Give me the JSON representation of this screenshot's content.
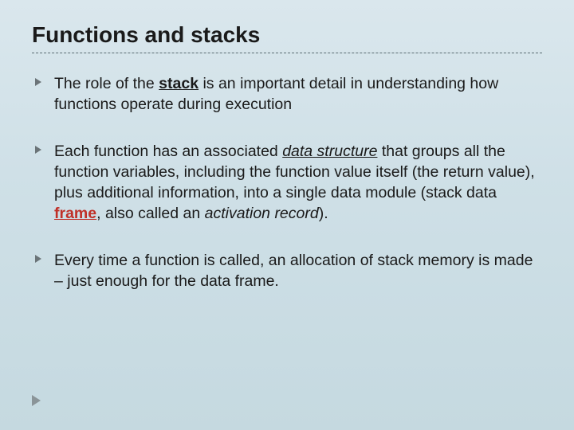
{
  "slide": {
    "title": "Functions and stacks",
    "background_gradient": [
      "#dae7ed",
      "#cfe0e7",
      "#c5d9e0"
    ],
    "divider_color": "#5a6b72",
    "title_fontsize": 28,
    "body_fontsize": 19.5,
    "bullet_color": "#6b7478",
    "corner_marker_color": "#8a9498",
    "accent_red": "#c03028",
    "text_color": "#1a1a1a",
    "bullets": [
      {
        "runs": [
          {
            "t": "The role of the "
          },
          {
            "t": "stack",
            "b": true,
            "u": true
          },
          {
            "t": " is an important detail in understanding how functions operate during execution"
          }
        ]
      },
      {
        "runs": [
          {
            "t": "Each function has an associated "
          },
          {
            "t": "data structure",
            "i": true,
            "u": true
          },
          {
            "t": " that groups all the function variables, including the function value itself (the return value), plus additional information, into a single data module (stack data "
          },
          {
            "t": "frame",
            "b": true,
            "red": true,
            "u": true
          },
          {
            "t": ", also called an "
          },
          {
            "t": "activation record",
            "i": true
          },
          {
            "t": ")."
          }
        ]
      },
      {
        "runs": [
          {
            "t": "Every time a function is called, an allocation of stack memory is made – just enough for the data frame."
          }
        ]
      }
    ]
  }
}
